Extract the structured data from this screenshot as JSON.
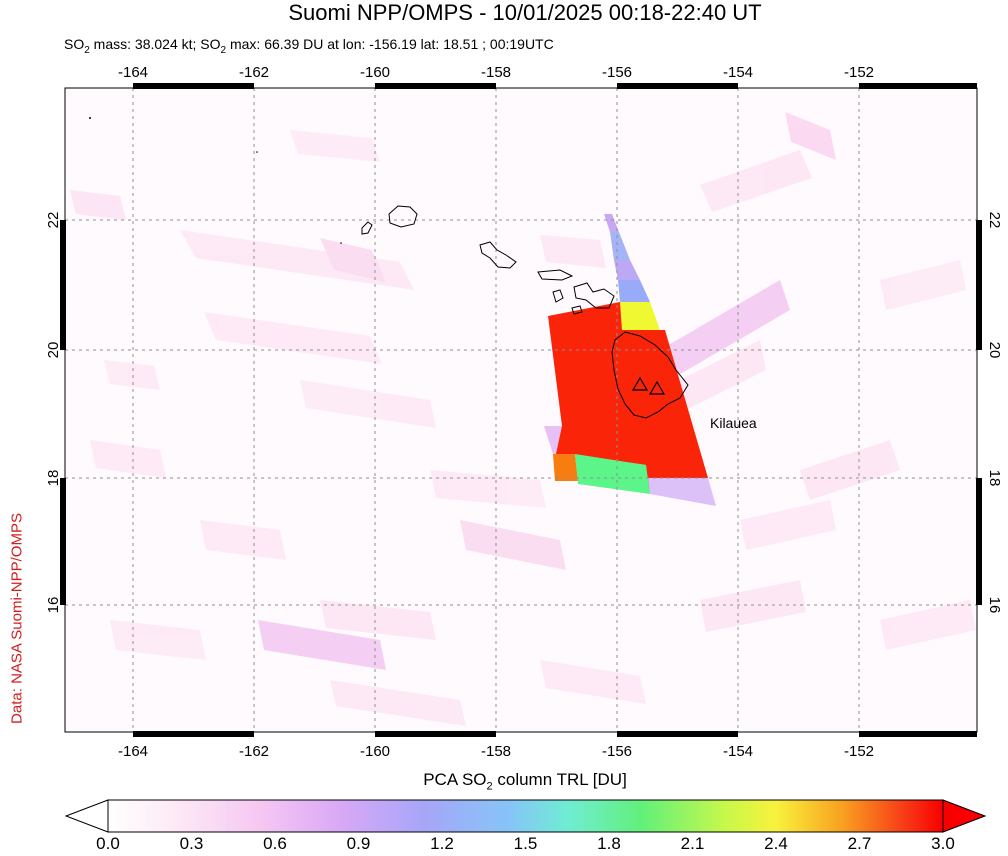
{
  "header": {
    "title": "Suomi NPP/OMPS - 10/01/2025 00:18-22:40 UT",
    "subtitle_prefix_so2": "SO",
    "subtitle_mass": " mass: 38.024 kt; SO",
    "subtitle_max": " max: 66.39 DU at lon: -156.19 lat: 18.51 ; 00:19UTC",
    "sub2": "2"
  },
  "credit": "Data: NASA Suomi-NPP/OMPS",
  "map": {
    "lon_ticks": [
      "-164",
      "-162",
      "-160",
      "-158",
      "-156",
      "-154",
      "-152"
    ],
    "lat_ticks": [
      "22",
      "20",
      "18",
      "16"
    ],
    "volcano_label": "Kilauea",
    "lon_range": [
      -165.1,
      -150.1
    ],
    "lat_range": [
      14.1,
      24.2
    ]
  },
  "colorbar": {
    "title_prefix": "PCA SO",
    "title_suffix": " column TRL [DU]",
    "sub2": "2",
    "ticks": [
      "0.0",
      "0.3",
      "0.6",
      "0.9",
      "1.2",
      "1.5",
      "1.8",
      "2.1",
      "2.4",
      "2.7",
      "3.0"
    ],
    "colors": [
      "#ffffff",
      "#fde3f3",
      "#f4b6f0",
      "#c8a0f5",
      "#9aa8f8",
      "#7ac8f8",
      "#6ef0c8",
      "#5ef088",
      "#c8f850",
      "#f8f040",
      "#f8a020",
      "#f83818",
      "#f80000"
    ]
  }
}
